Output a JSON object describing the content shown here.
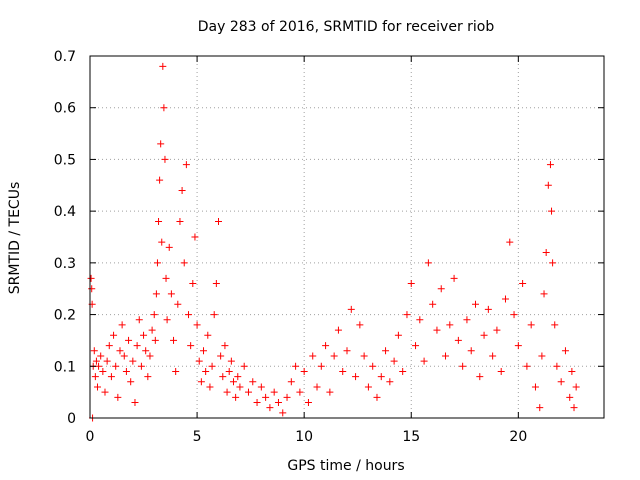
{
  "chart_data": {
    "type": "scatter",
    "title": "Day 283 of 2016, SRMTID for receiver riob",
    "xlabel": "GPS time / hours",
    "ylabel": "SRMTID / TECUs",
    "xlim": [
      0,
      24
    ],
    "ylim": [
      0,
      0.7
    ],
    "xticks": [
      0,
      5,
      10,
      15,
      20
    ],
    "xtick_labels": [
      "0",
      "5",
      "10",
      "15",
      "20"
    ],
    "yticks": [
      0,
      0.1,
      0.2,
      0.3,
      0.4,
      0.5,
      0.6,
      0.7
    ],
    "ytick_labels": [
      "0",
      "0.1",
      "0.2",
      "0.3",
      "0.4",
      "0.5",
      "0.6",
      "0.7"
    ],
    "grid": true,
    "marker": "+",
    "color": "#ff0000",
    "series": [
      {
        "name": "SRMTID",
        "points": [
          [
            0.05,
            0.27
          ],
          [
            0.08,
            0.25
          ],
          [
            0.1,
            0.22
          ],
          [
            0.12,
            0.0
          ],
          [
            0.15,
            0.1
          ],
          [
            0.2,
            0.13
          ],
          [
            0.25,
            0.08
          ],
          [
            0.3,
            0.11
          ],
          [
            0.35,
            0.06
          ],
          [
            0.4,
            0.1
          ],
          [
            0.5,
            0.12
          ],
          [
            0.6,
            0.09
          ],
          [
            0.7,
            0.05
          ],
          [
            0.8,
            0.11
          ],
          [
            0.9,
            0.14
          ],
          [
            1.0,
            0.08
          ],
          [
            1.1,
            0.16
          ],
          [
            1.2,
            0.1
          ],
          [
            1.3,
            0.04
          ],
          [
            1.4,
            0.13
          ],
          [
            1.5,
            0.18
          ],
          [
            1.6,
            0.12
          ],
          [
            1.7,
            0.09
          ],
          [
            1.8,
            0.15
          ],
          [
            1.9,
            0.07
          ],
          [
            2.0,
            0.11
          ],
          [
            2.1,
            0.03
          ],
          [
            2.2,
            0.14
          ],
          [
            2.3,
            0.19
          ],
          [
            2.4,
            0.1
          ],
          [
            2.5,
            0.16
          ],
          [
            2.6,
            0.13
          ],
          [
            2.7,
            0.08
          ],
          [
            2.8,
            0.12
          ],
          [
            2.9,
            0.17
          ],
          [
            3.0,
            0.2
          ],
          [
            3.05,
            0.15
          ],
          [
            3.1,
            0.24
          ],
          [
            3.15,
            0.3
          ],
          [
            3.2,
            0.38
          ],
          [
            3.25,
            0.46
          ],
          [
            3.3,
            0.53
          ],
          [
            3.35,
            0.34
          ],
          [
            3.4,
            0.68
          ],
          [
            3.45,
            0.6
          ],
          [
            3.5,
            0.5
          ],
          [
            3.55,
            0.27
          ],
          [
            3.6,
            0.19
          ],
          [
            3.7,
            0.33
          ],
          [
            3.8,
            0.24
          ],
          [
            3.9,
            0.15
          ],
          [
            4.0,
            0.09
          ],
          [
            4.1,
            0.22
          ],
          [
            4.2,
            0.38
          ],
          [
            4.3,
            0.44
          ],
          [
            4.4,
            0.3
          ],
          [
            4.5,
            0.49
          ],
          [
            4.6,
            0.2
          ],
          [
            4.7,
            0.14
          ],
          [
            4.8,
            0.26
          ],
          [
            4.9,
            0.35
          ],
          [
            5.0,
            0.18
          ],
          [
            5.1,
            0.11
          ],
          [
            5.2,
            0.07
          ],
          [
            5.3,
            0.13
          ],
          [
            5.4,
            0.09
          ],
          [
            5.5,
            0.16
          ],
          [
            5.6,
            0.06
          ],
          [
            5.7,
            0.1
          ],
          [
            5.8,
            0.2
          ],
          [
            5.9,
            0.26
          ],
          [
            6.0,
            0.38
          ],
          [
            6.1,
            0.12
          ],
          [
            6.2,
            0.08
          ],
          [
            6.3,
            0.14
          ],
          [
            6.4,
            0.05
          ],
          [
            6.5,
            0.09
          ],
          [
            6.6,
            0.11
          ],
          [
            6.7,
            0.07
          ],
          [
            6.8,
            0.04
          ],
          [
            6.9,
            0.08
          ],
          [
            7.0,
            0.06
          ],
          [
            7.2,
            0.1
          ],
          [
            7.4,
            0.05
          ],
          [
            7.6,
            0.07
          ],
          [
            7.8,
            0.03
          ],
          [
            8.0,
            0.06
          ],
          [
            8.2,
            0.04
          ],
          [
            8.4,
            0.02
          ],
          [
            8.6,
            0.05
          ],
          [
            8.8,
            0.03
          ],
          [
            9.0,
            0.01
          ],
          [
            9.2,
            0.04
          ],
          [
            9.4,
            0.07
          ],
          [
            9.6,
            0.1
          ],
          [
            9.8,
            0.05
          ],
          [
            10.0,
            0.09
          ],
          [
            10.2,
            0.03
          ],
          [
            10.4,
            0.12
          ],
          [
            10.6,
            0.06
          ],
          [
            10.8,
            0.1
          ],
          [
            11.0,
            0.14
          ],
          [
            11.2,
            0.05
          ],
          [
            11.4,
            0.12
          ],
          [
            11.6,
            0.17
          ],
          [
            11.8,
            0.09
          ],
          [
            12.0,
            0.13
          ],
          [
            12.2,
            0.21
          ],
          [
            12.4,
            0.08
          ],
          [
            12.6,
            0.18
          ],
          [
            12.8,
            0.12
          ],
          [
            13.0,
            0.06
          ],
          [
            13.2,
            0.1
          ],
          [
            13.4,
            0.04
          ],
          [
            13.6,
            0.08
          ],
          [
            13.8,
            0.13
          ],
          [
            14.0,
            0.07
          ],
          [
            14.2,
            0.11
          ],
          [
            14.4,
            0.16
          ],
          [
            14.6,
            0.09
          ],
          [
            14.8,
            0.2
          ],
          [
            15.0,
            0.26
          ],
          [
            15.2,
            0.14
          ],
          [
            15.4,
            0.19
          ],
          [
            15.6,
            0.11
          ],
          [
            15.8,
            0.3
          ],
          [
            16.0,
            0.22
          ],
          [
            16.2,
            0.17
          ],
          [
            16.4,
            0.25
          ],
          [
            16.6,
            0.12
          ],
          [
            16.8,
            0.18
          ],
          [
            17.0,
            0.27
          ],
          [
            17.2,
            0.15
          ],
          [
            17.4,
            0.1
          ],
          [
            17.6,
            0.19
          ],
          [
            17.8,
            0.13
          ],
          [
            18.0,
            0.22
          ],
          [
            18.2,
            0.08
          ],
          [
            18.4,
            0.16
          ],
          [
            18.6,
            0.21
          ],
          [
            18.8,
            0.12
          ],
          [
            19.0,
            0.17
          ],
          [
            19.2,
            0.09
          ],
          [
            19.4,
            0.23
          ],
          [
            19.6,
            0.34
          ],
          [
            19.8,
            0.2
          ],
          [
            20.0,
            0.14
          ],
          [
            20.2,
            0.26
          ],
          [
            20.4,
            0.1
          ],
          [
            20.6,
            0.18
          ],
          [
            20.8,
            0.06
          ],
          [
            21.0,
            0.02
          ],
          [
            21.1,
            0.12
          ],
          [
            21.2,
            0.24
          ],
          [
            21.3,
            0.32
          ],
          [
            21.4,
            0.45
          ],
          [
            21.5,
            0.49
          ],
          [
            21.55,
            0.4
          ],
          [
            21.6,
            0.3
          ],
          [
            21.7,
            0.18
          ],
          [
            21.8,
            0.1
          ],
          [
            22.0,
            0.07
          ],
          [
            22.2,
            0.13
          ],
          [
            22.4,
            0.04
          ],
          [
            22.5,
            0.09
          ],
          [
            22.6,
            0.02
          ],
          [
            22.7,
            0.06
          ]
        ]
      }
    ]
  }
}
